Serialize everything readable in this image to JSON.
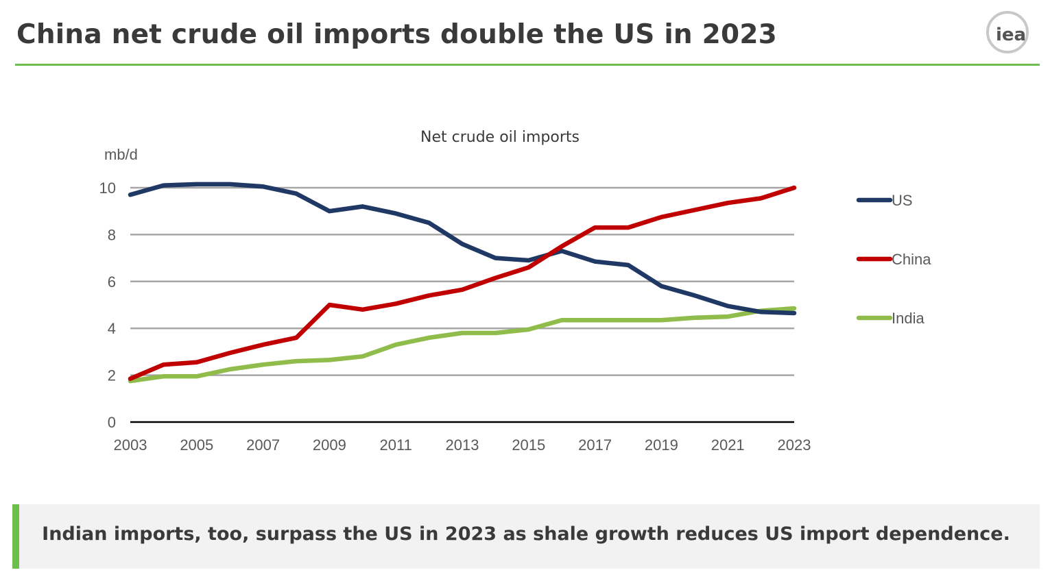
{
  "slide": {
    "title": "China net crude oil imports double the US in 2023",
    "logo_text": "iea",
    "callout": "Indian imports, too, surpass the US in 2023 as shale growth reduces US import dependence."
  },
  "chart_data": {
    "type": "line",
    "title": "Net crude oil imports",
    "ylabel": "mb/d",
    "xlabel": "",
    "x": [
      2003,
      2004,
      2005,
      2006,
      2007,
      2008,
      2009,
      2010,
      2011,
      2012,
      2013,
      2014,
      2015,
      2016,
      2017,
      2018,
      2019,
      2020,
      2021,
      2022,
      2023
    ],
    "x_tick_labels": [
      "2003",
      "2005",
      "2007",
      "2009",
      "2011",
      "2013",
      "2015",
      "2017",
      "2019",
      "2021",
      "2023"
    ],
    "y_tick_labels": [
      "0",
      "2",
      "4",
      "6",
      "8",
      "10"
    ],
    "ylim": [
      0,
      10
    ],
    "grid": true,
    "legend_position": "right",
    "series": [
      {
        "name": "US",
        "color": "#1f3864",
        "values": [
          9.7,
          10.1,
          10.15,
          10.15,
          10.05,
          9.75,
          9.0,
          9.2,
          8.9,
          8.5,
          7.6,
          7.0,
          6.9,
          7.3,
          6.85,
          6.7,
          5.8,
          5.4,
          4.95,
          4.7,
          4.65
        ]
      },
      {
        "name": "China",
        "color": "#c00000",
        "values": [
          1.85,
          2.45,
          2.55,
          2.95,
          3.3,
          3.6,
          5.0,
          4.8,
          5.05,
          5.4,
          5.65,
          6.15,
          6.6,
          7.5,
          8.3,
          8.3,
          8.75,
          9.05,
          9.35,
          9.55,
          10.0
        ]
      },
      {
        "name": "India",
        "color": "#8fbc4a",
        "values": [
          1.75,
          1.95,
          1.95,
          2.25,
          2.45,
          2.6,
          2.65,
          2.8,
          3.3,
          3.6,
          3.8,
          3.8,
          3.95,
          4.35,
          4.35,
          4.35,
          4.35,
          4.45,
          4.5,
          4.75,
          4.85
        ]
      }
    ]
  }
}
